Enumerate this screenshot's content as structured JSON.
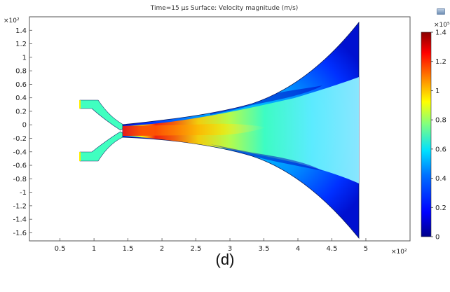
{
  "plot": {
    "title": "Time=15 µs   Surface: Velocity magnitude (m/s)",
    "y_exponent": "×10²",
    "x_exponent": "×10²",
    "y_ticks": [
      "1.4",
      "1.2",
      "1",
      "0.8",
      "0.6",
      "0.4",
      "0.2",
      "0",
      "-0.2",
      "-0.4",
      "-0.6",
      "-0.8",
      "-1",
      "-1.2",
      "-1.4",
      "-1.6"
    ],
    "y_tick_values": [
      1.4,
      1.2,
      1.0,
      0.8,
      0.6,
      0.4,
      0.2,
      0,
      -0.2,
      -0.4,
      -0.6,
      -0.8,
      -1.0,
      -1.2,
      -1.4,
      -1.6
    ],
    "x_ticks": [
      "0.5",
      "1",
      "1.5",
      "2",
      "2.5",
      "3",
      "3.5",
      "4",
      "4.5",
      "5"
    ],
    "x_tick_values": [
      0.5,
      1.0,
      1.5,
      2.0,
      2.5,
      3.0,
      3.5,
      4.0,
      4.5,
      5.0
    ],
    "x_range": [
      0.05,
      5.65
    ],
    "y_range": [
      -1.72,
      1.6
    ]
  },
  "colorbar": {
    "exponent": "×10⁵",
    "ticks": [
      "1.4",
      "1.2",
      "1",
      "0.8",
      "0.6",
      "0.4",
      "0.2",
      "0"
    ],
    "tick_values": [
      1.4,
      1.2,
      1.0,
      0.8,
      0.6,
      0.4,
      0.2,
      0
    ],
    "range": [
      0,
      1.4
    ],
    "colors": [
      "#00008a",
      "#0000ff",
      "#0070ff",
      "#00e0ff",
      "#80ff80",
      "#ffff00",
      "#ff8000",
      "#ff0000",
      "#8a0000"
    ]
  },
  "caption": "(d)"
}
